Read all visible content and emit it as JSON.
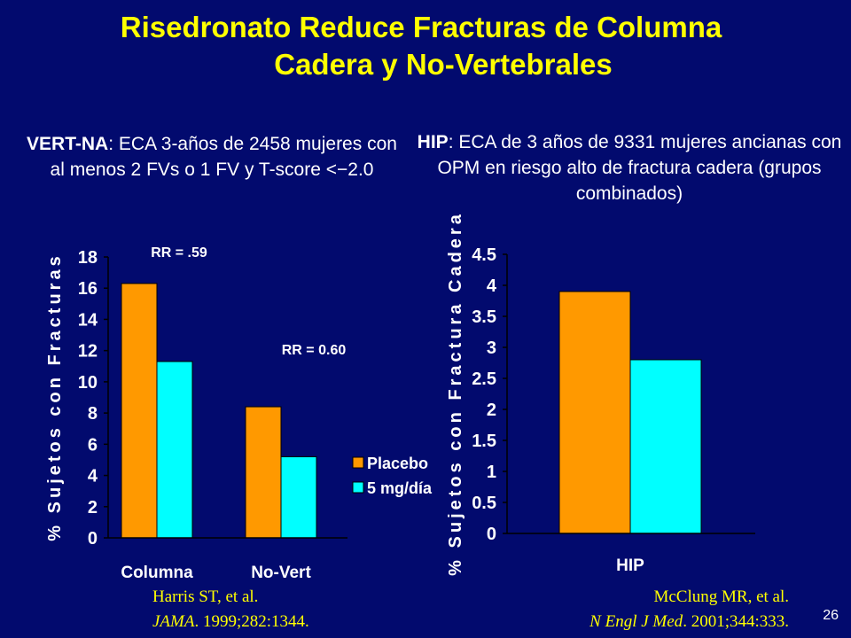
{
  "title": {
    "line1": "Risedronato Reduce Fracturas de Columna",
    "line2": "Cadera y No-Vertebrales"
  },
  "left_desc": {
    "bold": "VERT-NA",
    "text": ": ECA 3-años de 2458 mujeres con al menos 2 FVs o 1 FV y  T-score <−2.0"
  },
  "right_desc": {
    "bold": "HIP",
    "text": ": ECA de 3 años de 9331 mujeres ancianas con OPM en riesgo alto de fractura cadera (grupos combinados)"
  },
  "chart_data": [
    {
      "type": "bar",
      "categories": [
        "Columna",
        "No-Vert"
      ],
      "series": [
        {
          "name": "Placebo",
          "values": [
            16.3,
            8.4
          ],
          "color": "#ff9900"
        },
        {
          "name": "5 mg/día",
          "values": [
            11.3,
            5.2
          ],
          "color": "#00ffff"
        }
      ],
      "ylabel": "% Sujetos con Fracturas",
      "ylim": [
        0,
        18
      ],
      "yticks": [
        0,
        2,
        4,
        6,
        8,
        10,
        12,
        14,
        16,
        18
      ],
      "annotations": [
        "RR = .59",
        "RR = 0.60"
      ],
      "legend": "right"
    },
    {
      "type": "bar",
      "categories": [
        "HIP"
      ],
      "series": [
        {
          "name": "Placebo",
          "values": [
            3.9
          ],
          "color": "#ff9900"
        },
        {
          "name": "5 mg/día",
          "values": [
            2.8
          ],
          "color": "#00ffff"
        }
      ],
      "ylabel": "% Sujetos con Fractura Cadera",
      "ylim": [
        0,
        4.5
      ],
      "yticks": [
        0,
        0.5,
        1,
        1.5,
        2,
        2.5,
        3,
        3.5,
        4,
        4.5
      ]
    }
  ],
  "references": {
    "left": {
      "line1": "Harris ST, et al.",
      "journal": "JAMA",
      "rest": ". 1999;282:1344."
    },
    "right": {
      "line1": "McClung MR, et al.",
      "journal": "N Engl J Med",
      "rest": ". 2001;344:333."
    }
  },
  "page_number": "26"
}
